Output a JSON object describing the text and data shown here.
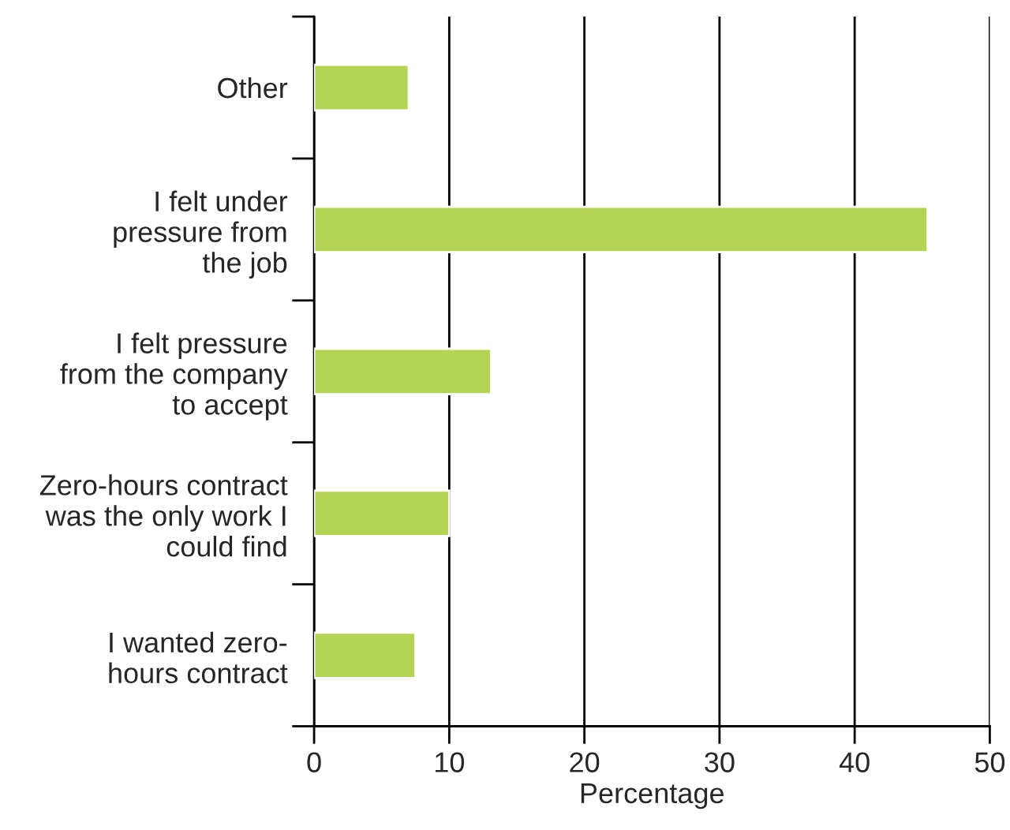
{
  "chart_data": {
    "type": "bar",
    "orientation": "horizontal",
    "xlabel": "Percentage",
    "categories": [
      "Other",
      "I felt under\npressure from\nthe job",
      "I felt pressure\nfrom the company\nto accept",
      "Zero-hours contract\nwas the only work I\ncould find",
      "I wanted zero-\nhours contract"
    ],
    "values": [
      7,
      45.4,
      13.1,
      10,
      7.5
    ],
    "color": "#b3d453",
    "xlim": [
      0,
      50
    ],
    "xticks": [
      0,
      10,
      20,
      30,
      40,
      50
    ],
    "grid": "x"
  }
}
